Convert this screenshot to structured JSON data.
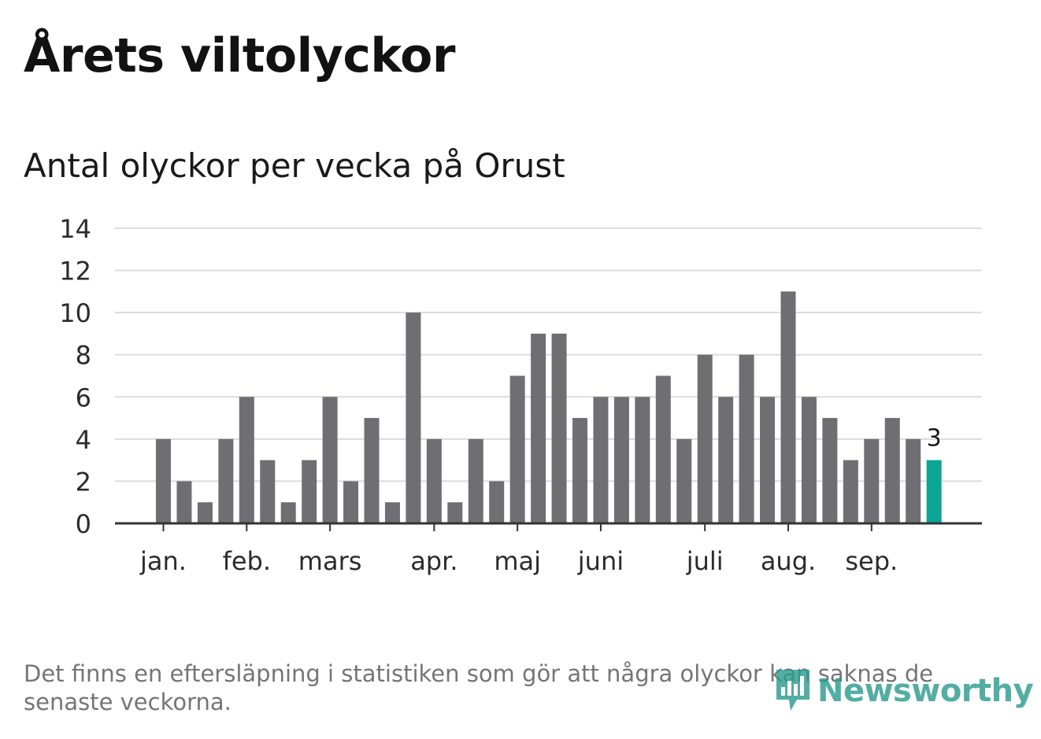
{
  "header": {
    "title": "Årets viltolyckor",
    "subtitle": "Antal olyckor per vecka på Orust"
  },
  "chart_data": {
    "type": "bar",
    "title": "Årets viltolyckor",
    "subtitle": "Antal olyckor per vecka på Orust",
    "xlabel": "",
    "ylabel": "",
    "ylim": [
      0,
      14
    ],
    "y_ticks": [
      0,
      2,
      4,
      6,
      8,
      10,
      12,
      14
    ],
    "grid": true,
    "x_tick_labels": [
      {
        "label": "jan.",
        "week_index": 0
      },
      {
        "label": "feb.",
        "week_index": 4
      },
      {
        "label": "mars",
        "week_index": 8
      },
      {
        "label": "apr.",
        "week_index": 13
      },
      {
        "label": "maj",
        "week_index": 17
      },
      {
        "label": "juni",
        "week_index": 21
      },
      {
        "label": "juli",
        "week_index": 26
      },
      {
        "label": "aug.",
        "week_index": 30
      },
      {
        "label": "sep.",
        "week_index": 34
      }
    ],
    "values": [
      4,
      2,
      1,
      4,
      6,
      3,
      1,
      3,
      6,
      2,
      5,
      1,
      10,
      4,
      1,
      4,
      2,
      7,
      9,
      9,
      5,
      6,
      6,
      6,
      7,
      4,
      8,
      6,
      8,
      6,
      11,
      6,
      5,
      3,
      4,
      5,
      4,
      3
    ],
    "highlight_index": 37,
    "highlight_label": "3",
    "colors": {
      "bar": "#6f6e73",
      "highlight": "#0aa597",
      "grid": "#dcdcdc",
      "axis": "#333333",
      "tick_text": "#2b2b2b"
    }
  },
  "footer": {
    "note": "Det finns en eftersläpning i statistiken som gör att några olyckor kan saknas de senaste veckorna.",
    "brand": "Newsworthy",
    "brand_icon": "newsworthy-logo-icon"
  }
}
